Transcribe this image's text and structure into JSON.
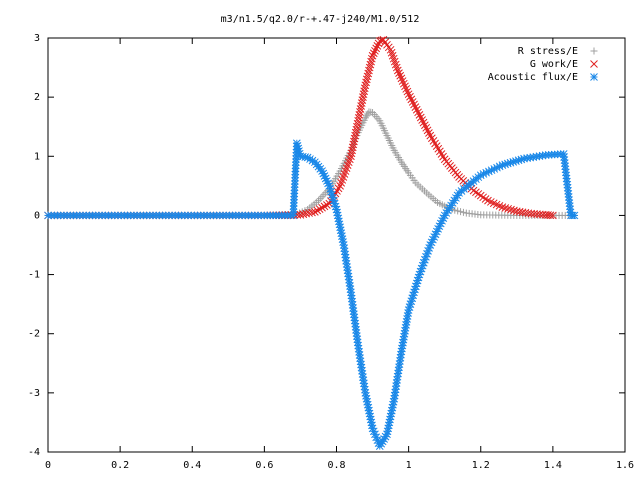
{
  "chart_data": {
    "type": "scatter",
    "title": "m3/n1.5/q2.0/r-+.47-j240/M1.0/512",
    "xlabel": "",
    "ylabel": "",
    "xlim": [
      0,
      1.6
    ],
    "ylim": [
      -4,
      3
    ],
    "xticks": [
      "0",
      "0.2",
      "0.4",
      "0.6",
      "0.8",
      "1",
      "1.2",
      "1.4",
      "1.6"
    ],
    "yticks": [
      "-4",
      "-3",
      "-2",
      "-1",
      "0",
      "1",
      "2",
      "3"
    ],
    "grid": false,
    "legend_position": "top-right",
    "series": [
      {
        "name": "R stress/E",
        "marker": "+",
        "color": "#a0a0a0",
        "points": [
          [
            0.0,
            0
          ],
          [
            0.6,
            0
          ],
          [
            0.69,
            0.02
          ],
          [
            0.72,
            0.1
          ],
          [
            0.75,
            0.25
          ],
          [
            0.78,
            0.45
          ],
          [
            0.81,
            0.75
          ],
          [
            0.84,
            1.1
          ],
          [
            0.86,
            1.4
          ],
          [
            0.88,
            1.65
          ],
          [
            0.89,
            1.75
          ],
          [
            0.9,
            1.74
          ],
          [
            0.92,
            1.6
          ],
          [
            0.94,
            1.35
          ],
          [
            0.96,
            1.1
          ],
          [
            0.98,
            0.9
          ],
          [
            1.0,
            0.72
          ],
          [
            1.02,
            0.55
          ],
          [
            1.05,
            0.38
          ],
          [
            1.08,
            0.22
          ],
          [
            1.12,
            0.1
          ],
          [
            1.16,
            0.04
          ],
          [
            1.2,
            0.01
          ],
          [
            1.3,
            0
          ],
          [
            1.4,
            0
          ],
          [
            1.46,
            0
          ]
        ]
      },
      {
        "name": "G work/E",
        "marker": "x",
        "color": "#e02020",
        "points": [
          [
            0.0,
            0
          ],
          [
            0.6,
            0
          ],
          [
            0.7,
            0.01
          ],
          [
            0.74,
            0.06
          ],
          [
            0.78,
            0.2
          ],
          [
            0.81,
            0.5
          ],
          [
            0.84,
            1.0
          ],
          [
            0.86,
            1.6
          ],
          [
            0.88,
            2.2
          ],
          [
            0.9,
            2.7
          ],
          [
            0.92,
            2.95
          ],
          [
            0.93,
            2.97
          ],
          [
            0.95,
            2.8
          ],
          [
            0.97,
            2.45
          ],
          [
            1.0,
            2.05
          ],
          [
            1.03,
            1.7
          ],
          [
            1.06,
            1.35
          ],
          [
            1.1,
            0.95
          ],
          [
            1.14,
            0.65
          ],
          [
            1.18,
            0.42
          ],
          [
            1.22,
            0.25
          ],
          [
            1.26,
            0.14
          ],
          [
            1.3,
            0.07
          ],
          [
            1.34,
            0.03
          ],
          [
            1.38,
            0.01
          ],
          [
            1.4,
            0
          ]
        ]
      },
      {
        "name": "Acoustic flux/E",
        "marker": "*",
        "color": "#1a88e8",
        "points": [
          [
            0.0,
            0
          ],
          [
            0.6,
            0
          ],
          [
            0.68,
            0
          ],
          [
            0.69,
            1.22
          ],
          [
            0.7,
            1.0
          ],
          [
            0.72,
            0.98
          ],
          [
            0.74,
            0.9
          ],
          [
            0.76,
            0.75
          ],
          [
            0.78,
            0.5
          ],
          [
            0.8,
            0.1
          ],
          [
            0.82,
            -0.5
          ],
          [
            0.84,
            -1.3
          ],
          [
            0.86,
            -2.2
          ],
          [
            0.88,
            -3.0
          ],
          [
            0.9,
            -3.6
          ],
          [
            0.92,
            -3.9
          ],
          [
            0.94,
            -3.7
          ],
          [
            0.96,
            -3.1
          ],
          [
            0.98,
            -2.3
          ],
          [
            1.0,
            -1.6
          ],
          [
            1.03,
            -1.0
          ],
          [
            1.06,
            -0.5
          ],
          [
            1.1,
            0.0
          ],
          [
            1.14,
            0.38
          ],
          [
            1.2,
            0.68
          ],
          [
            1.26,
            0.85
          ],
          [
            1.32,
            0.96
          ],
          [
            1.38,
            1.02
          ],
          [
            1.43,
            1.04
          ],
          [
            1.45,
            0
          ],
          [
            1.46,
            0
          ]
        ]
      }
    ]
  }
}
